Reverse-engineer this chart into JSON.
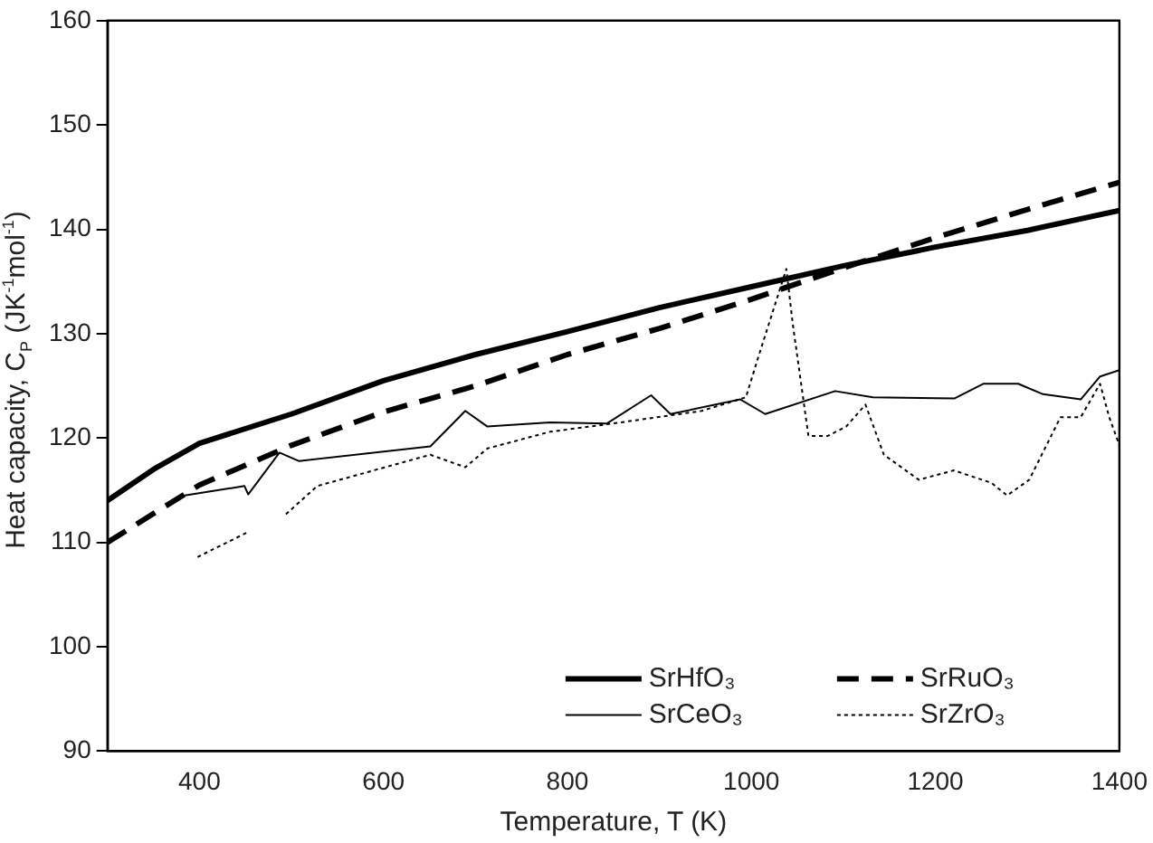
{
  "chart_data": {
    "type": "line",
    "xlabel": "Temperature, T (K)",
    "ylabel": "Heat capacity, C$_{P}$ (JK$^{-1}$mol$^{-1}$)",
    "xlim": [
      300,
      1400
    ],
    "xticks": [
      400,
      600,
      800,
      1000,
      1200,
      1400
    ],
    "ylim": [
      90,
      160
    ],
    "yticks": [
      90,
      100,
      110,
      120,
      130,
      140,
      150,
      160
    ],
    "grid": false,
    "legend": "bottom right",
    "marker": "none",
    "series": [
      {
        "name": "SrHfO₃",
        "color": "#000000",
        "line_style": "solid",
        "x": [
          300,
          350,
          400,
          500,
          600,
          700,
          800,
          900,
          1000,
          1100,
          1200,
          1300,
          1400
        ],
        "values": [
          114,
          117,
          119.5,
          122.3,
          125.5,
          128,
          130.2,
          132.5,
          134.5,
          136.5,
          138.3,
          139.9,
          141.8
        ]
      },
      {
        "name": "SrRuO₃",
        "color": "#000000",
        "line_style": "dashed",
        "x": [
          300,
          400,
          500,
          600,
          700,
          800,
          900,
          1000,
          1100,
          1200,
          1300,
          1400
        ],
        "values": [
          110,
          115.5,
          119.3,
          122.5,
          125,
          128,
          130.5,
          133.3,
          136.3,
          139.2,
          141.9,
          144.5
        ]
      },
      {
        "name": "SrCeO₃",
        "color": "#000000",
        "line_style": "solid",
        "x": [
          384,
          449,
          453,
          487,
          508,
          651,
          689,
          713,
          781,
          843,
          891,
          912,
          988,
          1015,
          1091,
          1132,
          1221,
          1252,
          1290,
          1317,
          1358,
          1379,
          1400
        ],
        "values": [
          114.5,
          115.4,
          114.6,
          118.6,
          117.8,
          119.2,
          122.6,
          121.1,
          121.5,
          121.4,
          124.1,
          122.3,
          123.7,
          122.3,
          124.5,
          123.9,
          123.8,
          125.2,
          125.2,
          124.2,
          123.7,
          125.9,
          126.5
        ]
      },
      {
        "name": "SrZrO₃",
        "color": "#000000",
        "line_style": "dotted",
        "x": [
          398,
          453,
          470,
          494,
          528,
          651,
          689,
          713,
          781,
          850,
          946,
          994,
          1008,
          1038,
          1045,
          1062,
          1083,
          1103,
          1124,
          1144,
          1182,
          1220,
          1261,
          1278,
          1302,
          1336,
          1358,
          1379,
          1389,
          1400
        ],
        "values": [
          108.6,
          111,
          null,
          112.7,
          115.4,
          118.4,
          117.2,
          119,
          120.6,
          121.4,
          122.6,
          123.9,
          127.9,
          136.2,
          130.9,
          120.2,
          120.2,
          121.1,
          123.2,
          118.4,
          116,
          116.9,
          115.7,
          114.5,
          116,
          122,
          122,
          125.2,
          122,
          119.3
        ]
      }
    ]
  }
}
